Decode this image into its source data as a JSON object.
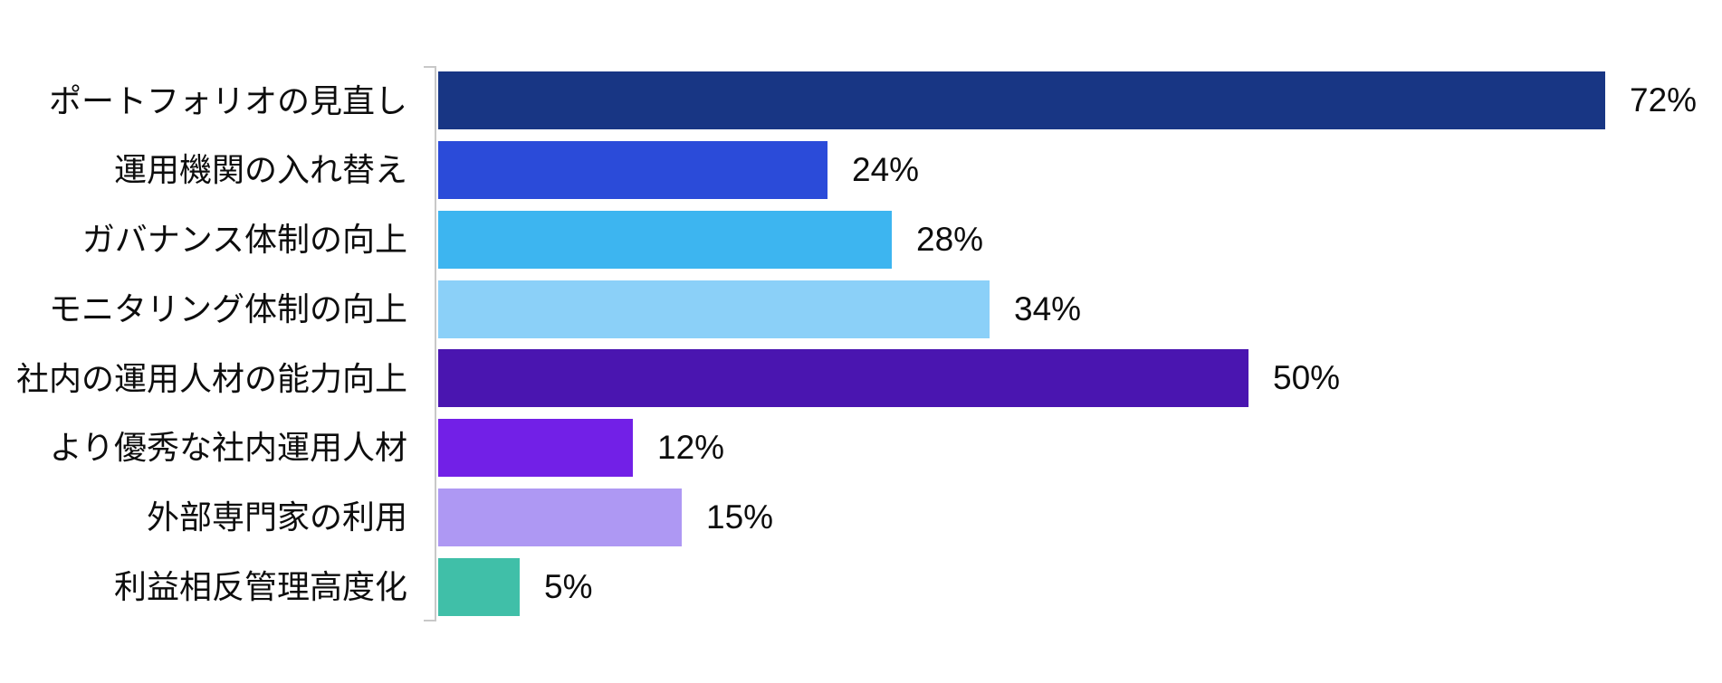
{
  "chart_data": {
    "type": "bar",
    "orientation": "horizontal",
    "title": "",
    "xlabel": "",
    "ylabel": "",
    "grid": false,
    "legend": false,
    "background": "#ffffff",
    "axis_color": "#c8c8c8",
    "text_color": "#0d0d0d",
    "xlim": [
      0,
      79
    ],
    "unit": "%",
    "categories": [
      "ポートフォリオの見直し",
      "運用機関の入れ替え",
      "ガバナンス体制の向上",
      "モニタリング体制の向上",
      "社内の運用人材の能力向上",
      "より優秀な社内運用人材",
      "外部専門家の利用",
      "利益相反管理高度化"
    ],
    "values": [
      72,
      24,
      28,
      34,
      50,
      12,
      15,
      5
    ],
    "value_labels": [
      "72%",
      "24%",
      "28%",
      "34%",
      "50%",
      "12%",
      "15%",
      "5%"
    ],
    "bar_colors": [
      "#183684",
      "#2B4BD9",
      "#3DB5F0",
      "#8BD0F8",
      "#4A15B0",
      "#7220E7",
      "#AE98F3",
      "#40BFA8"
    ]
  }
}
